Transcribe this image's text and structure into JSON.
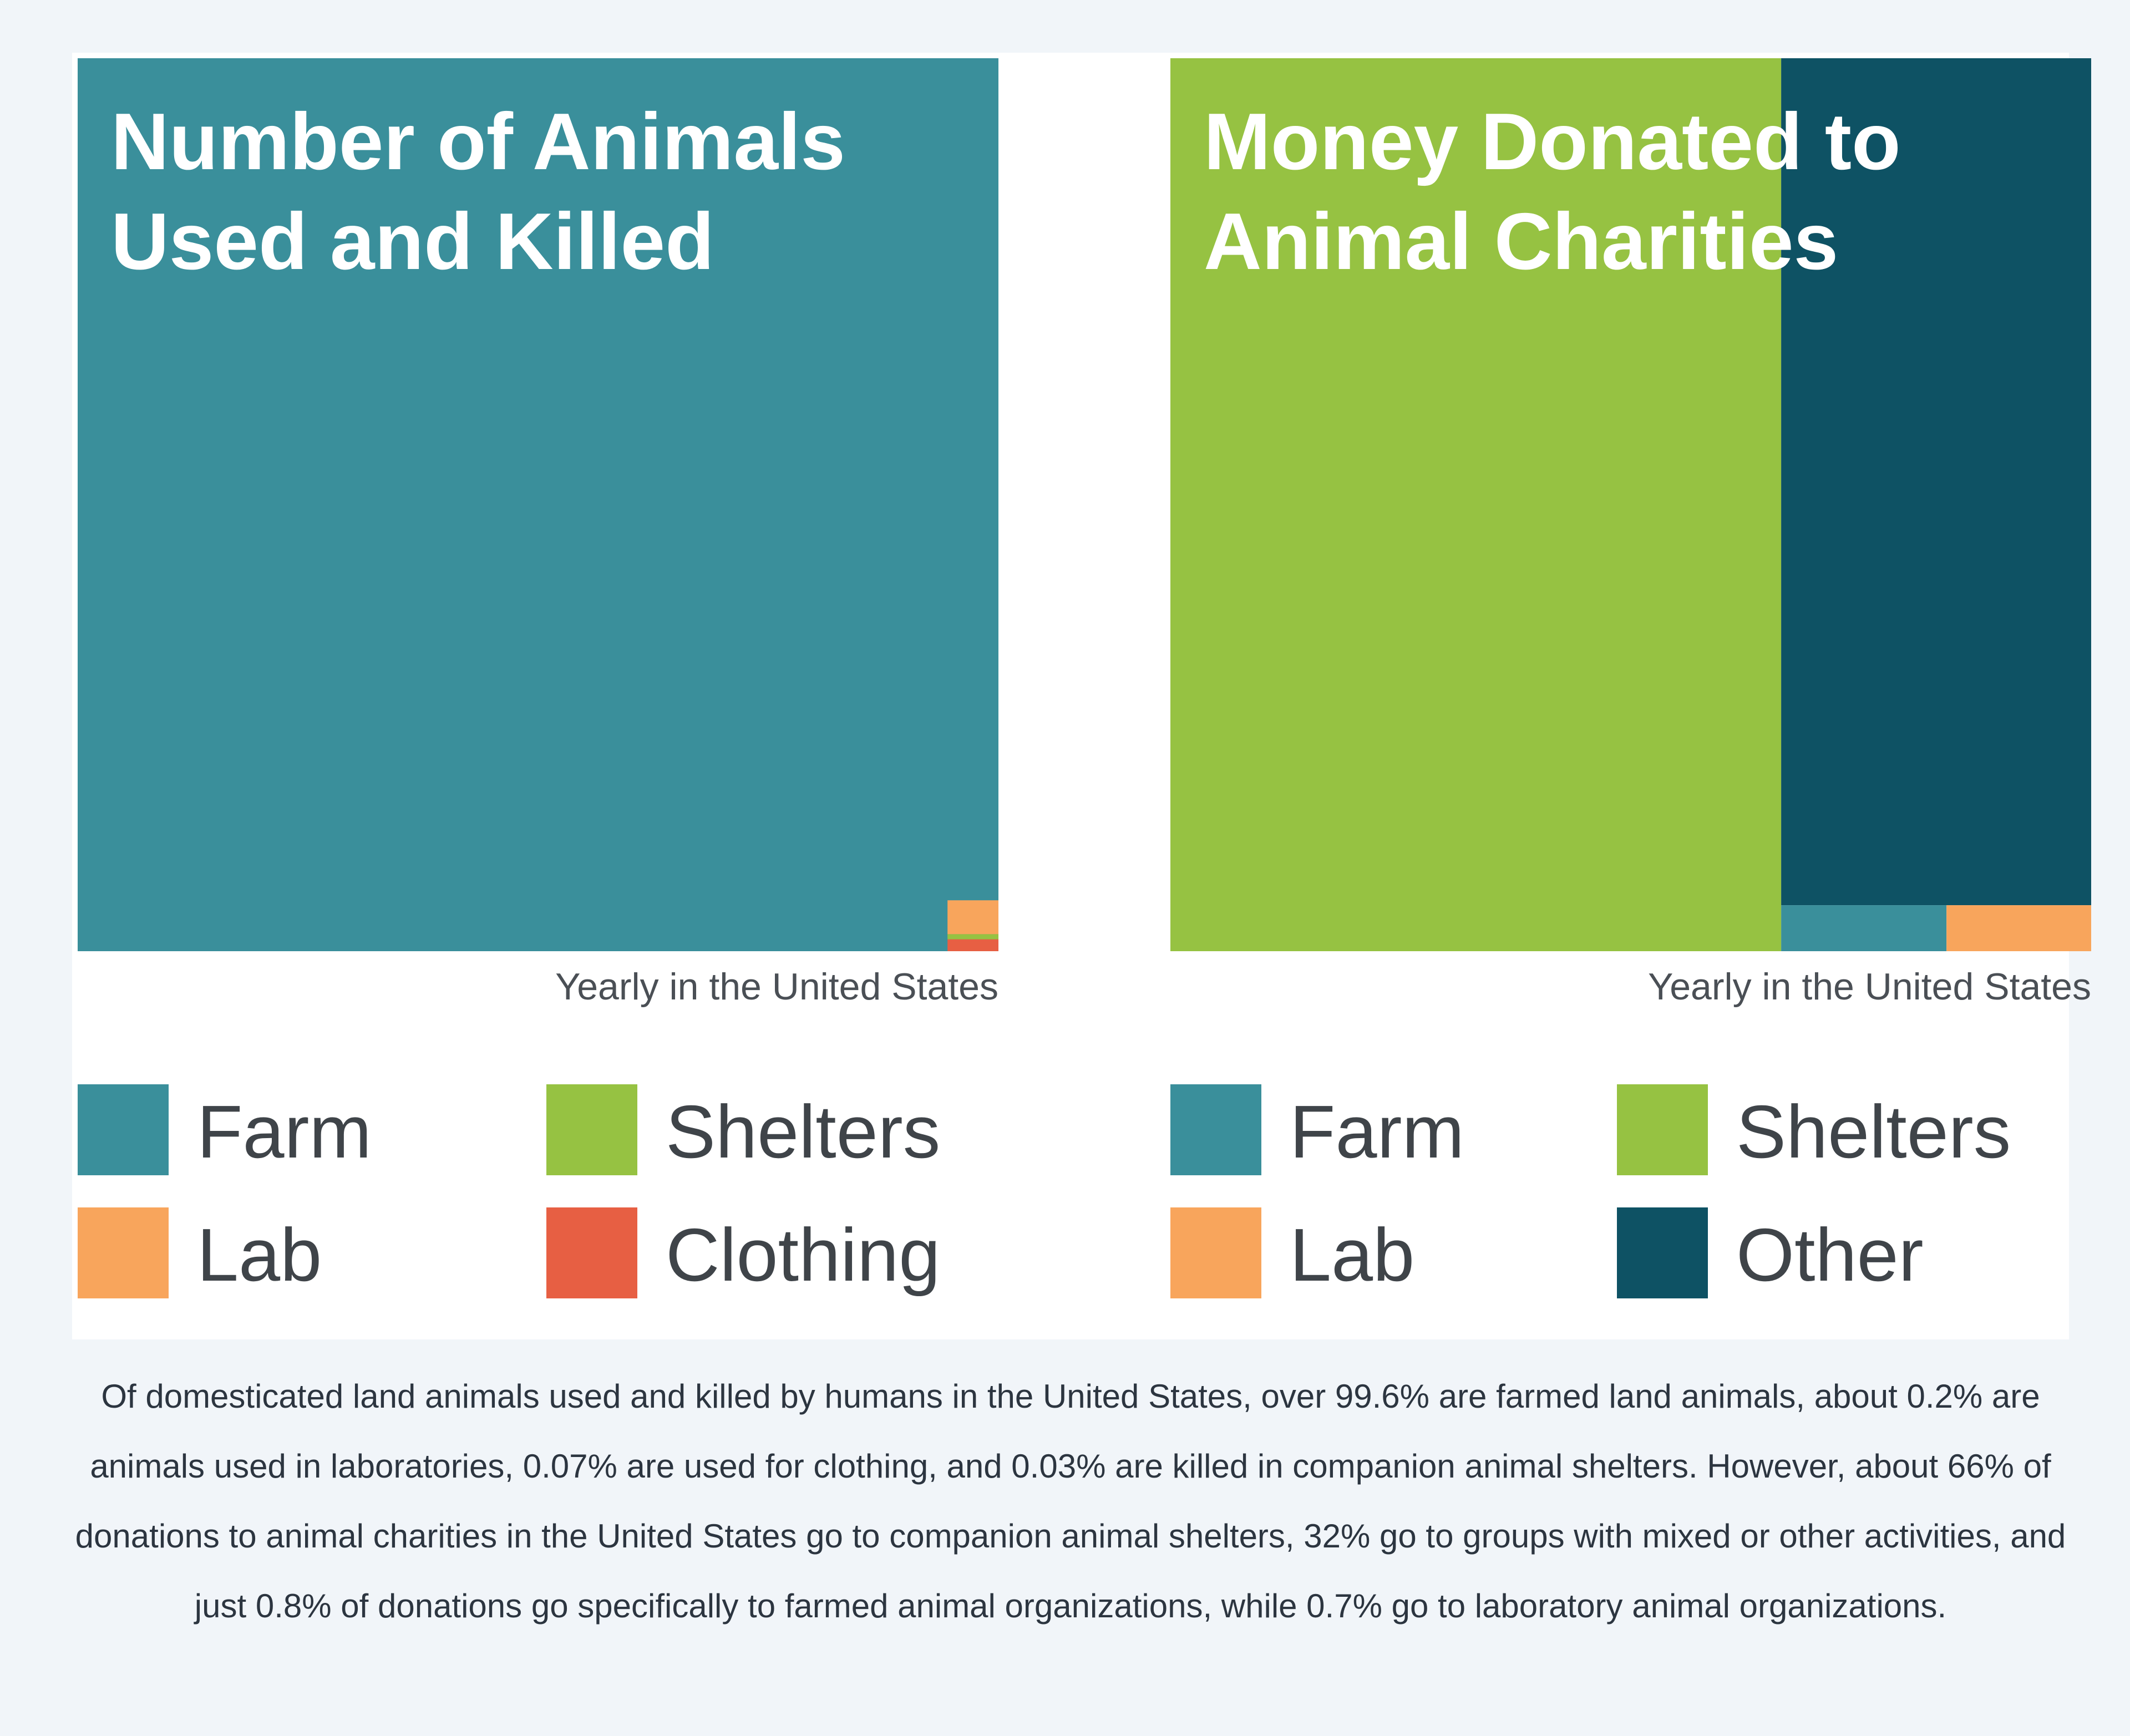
{
  "colors": {
    "farm": "#3a8f9b",
    "lab": "#f8a55c",
    "shelters": "#96c242",
    "clothing": "#e75f43",
    "other": "#0e5264"
  },
  "chart_data": [
    {
      "type": "treemap",
      "title_line1": "Number of Animals",
      "title_line2": "Used and Killed",
      "subtitle": "Yearly in the United States",
      "unit": "percent",
      "segments": [
        {
          "key": "farm",
          "name": "Farm",
          "value": 99.6
        },
        {
          "key": "lab",
          "name": "Lab",
          "value": 0.2
        },
        {
          "key": "clothing",
          "name": "Clothing",
          "value": 0.07
        },
        {
          "key": "shelters",
          "name": "Shelters",
          "value": 0.03
        }
      ],
      "legend": [
        {
          "key": "farm",
          "label": "Farm"
        },
        {
          "key": "shelters",
          "label": "Shelters"
        },
        {
          "key": "lab",
          "label": "Lab"
        },
        {
          "key": "clothing",
          "label": "Clothing"
        }
      ]
    },
    {
      "type": "treemap",
      "title_line1": "Money Donated to",
      "title_line2": "Animal Charities",
      "subtitle": "Yearly in the United States",
      "unit": "percent",
      "segments": [
        {
          "key": "shelters",
          "name": "Shelters",
          "value": 66
        },
        {
          "key": "other",
          "name": "Other",
          "value": 32
        },
        {
          "key": "farm",
          "name": "Farm",
          "value": 0.8
        },
        {
          "key": "lab",
          "name": "Lab",
          "value": 0.7
        }
      ],
      "legend": [
        {
          "key": "farm",
          "label": "Farm"
        },
        {
          "key": "shelters",
          "label": "Shelters"
        },
        {
          "key": "lab",
          "label": "Lab"
        },
        {
          "key": "other",
          "label": "Other"
        }
      ]
    }
  ],
  "caption": "Of domesticated land animals used and killed by humans in the United States, over 99.6% are farmed land animals, about 0.2% are animals used in laboratories, 0.07% are used for clothing, and 0.03% are killed in companion animal shelters. However, about 66% of donations to animal charities in the United States go to companion animal shelters, 32% go to groups with mixed or other activities, and just 0.8% of donations go specifically to farmed animal organizations, while 0.7% go to laboratory animal organizations."
}
